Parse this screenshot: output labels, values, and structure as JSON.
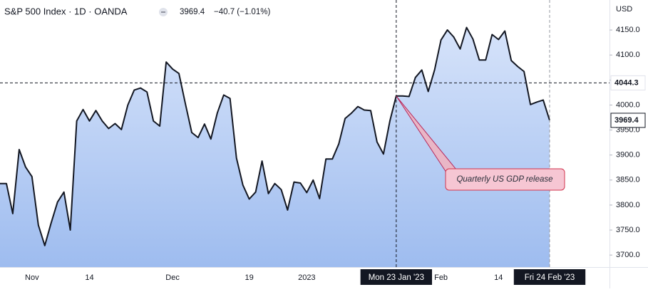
{
  "chart_data": {
    "type": "area",
    "title": "S&P 500 Index · 1D · OANDA",
    "legend_close": "3969.4",
    "legend_change": "−40.7 (−1.01%)",
    "currency": "USD",
    "categories": [
      null,
      null,
      null,
      null,
      null,
      "Nov",
      null,
      null,
      null,
      null,
      null,
      null,
      null,
      null,
      "14",
      null,
      null,
      null,
      null,
      null,
      null,
      null,
      null,
      null,
      null,
      null,
      null,
      "Dec",
      null,
      null,
      null,
      null,
      null,
      null,
      null,
      null,
      null,
      null,
      null,
      "19",
      null,
      null,
      null,
      null,
      null,
      null,
      null,
      null,
      "2023",
      null,
      null,
      null,
      null,
      null,
      null,
      null,
      null,
      null,
      null,
      null,
      null,
      null,
      "Mon 23 Jan '23",
      null,
      null,
      null,
      null,
      null,
      null,
      "Feb",
      null,
      null,
      null,
      null,
      null,
      null,
      null,
      null,
      "14",
      null,
      null,
      null,
      null,
      null,
      null,
      null,
      "Fri 24 Feb '23"
    ],
    "series": [
      {
        "name": "S&P 500 Index",
        "color": "#131722",
        "values": [
          3843,
          3843,
          3783,
          3911,
          3876,
          3857,
          3760,
          3719,
          3764,
          3806,
          3826,
          3750,
          3968,
          3991,
          3968,
          3989,
          3968,
          3953,
          3963,
          3951,
          4000,
          4030,
          4034,
          4026,
          3968,
          3958,
          4086,
          4072,
          4063,
          4003,
          3945,
          3935,
          3962,
          3932,
          3984,
          4020,
          4013,
          3894,
          3840,
          3812,
          3826,
          3888,
          3823,
          3843,
          3831,
          3790,
          3846,
          3844,
          3825,
          3850,
          3813,
          3892,
          3892,
          3922,
          3973,
          3984,
          3997,
          3990,
          3989,
          3926,
          3902,
          3968,
          4018,
          4018,
          4017,
          4055,
          4070,
          4027,
          4070,
          4130,
          4150,
          4136,
          4112,
          4155,
          4132,
          4090,
          4090,
          4141,
          4131,
          4148,
          4089,
          4077,
          4067,
          4001,
          4006,
          4010,
          3969.4
        ]
      }
    ],
    "ylim": [
      3676,
      4210
    ],
    "yticks": [
      {
        "value": 3700,
        "label": "3700.0"
      },
      {
        "value": 3750,
        "label": "3750.0"
      },
      {
        "value": 3800,
        "label": "3800.0"
      },
      {
        "value": 3850,
        "label": "3850.0"
      },
      {
        "value": 3900,
        "label": "3900.0"
      },
      {
        "value": 3950,
        "label": "3950.0"
      },
      {
        "value": 4000,
        "label": "4000.0"
      },
      {
        "value": 4050,
        "label": "4050.0"
      },
      {
        "value": 4100,
        "label": "4100.0"
      },
      {
        "value": 4150,
        "label": "4150.0"
      }
    ],
    "crosshair": {
      "x": "Mon 23 Jan '23",
      "y": 4044.3
    },
    "annotation": {
      "text": "Quarterly US GDP release",
      "x": "Mon 23 Jan '23"
    },
    "area_colors": [
      "#d6e3fa",
      "#9ebcef"
    ],
    "grid": false
  }
}
